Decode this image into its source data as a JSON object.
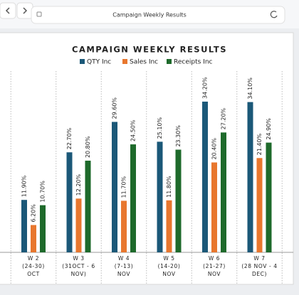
{
  "browser": {
    "address": "Campaign Weekly Results"
  },
  "chart_data": {
    "type": "bar",
    "title": "CAMPAIGN WEEKLY RESULTS",
    "categories": [
      [
        "W 2",
        "(24-30)",
        "OCT"
      ],
      [
        "W 3",
        "(31OCT - 6",
        "NOV)"
      ],
      [
        "W 4",
        "(7-13)",
        "NOV"
      ],
      [
        "W 5",
        "(14-20)",
        "NOV"
      ],
      [
        "W 6",
        "(21-27)",
        "NOV"
      ],
      [
        "W 7",
        "(28 NOV - 4",
        "DEC)"
      ]
    ],
    "series": [
      {
        "name": "QTY Inc",
        "color": "#1b5878",
        "values": [
          11.9,
          22.7,
          29.6,
          25.1,
          34.2,
          34.1
        ],
        "value_labels": [
          "11.90%",
          "22.70%",
          "29.60%",
          "25.10%",
          "34.20%",
          "34.10%"
        ]
      },
      {
        "name": "Sales Inc",
        "color": "#e8772e",
        "values": [
          6.2,
          12.2,
          11.7,
          11.8,
          20.4,
          21.4
        ],
        "value_labels": [
          "6.20%",
          "12.20%",
          "11.70%",
          "11.80%",
          "20.40%",
          "21.40%"
        ]
      },
      {
        "name": "Receipts Inc",
        "color": "#1e6a2b",
        "values": [
          10.7,
          20.8,
          24.5,
          23.3,
          27.2,
          24.9
        ],
        "value_labels": [
          "10.70%",
          "20.80%",
          "24.50%",
          "23.30%",
          "27.20%",
          "24.90%"
        ]
      }
    ],
    "ylim": [
      0,
      45
    ],
    "legend": "top"
  }
}
